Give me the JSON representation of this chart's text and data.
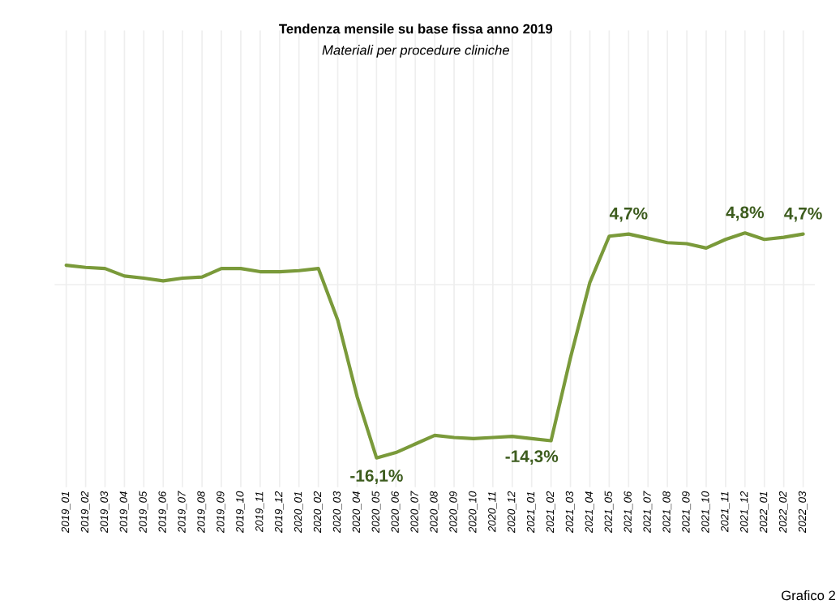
{
  "chart_data": {
    "type": "line",
    "title": "Tendenza mensile su base fissa anno 2019",
    "subtitle": "Materiali per procedure cliniche",
    "categories": [
      "2019_01",
      "2019_02",
      "2019_03",
      "2019_04",
      "2019_05",
      "2019_06",
      "2019_07",
      "2019_08",
      "2019_09",
      "2019_10",
      "2019_11",
      "2019_12",
      "2020_01",
      "2020_02",
      "2020_03",
      "2020_04",
      "2020_05",
      "2020_06",
      "2020_07",
      "2020_08",
      "2020_09",
      "2020_10",
      "2020_11",
      "2020_12",
      "2021_01",
      "2021_02",
      "2021_03",
      "2021_04",
      "2021_05",
      "2021_06",
      "2021_07",
      "2021_08",
      "2021_09",
      "2021_10",
      "2021_11",
      "2021_12",
      "2022_01",
      "2022_02",
      "2022_03"
    ],
    "series": [
      {
        "color": "#7a9a3a",
        "values": [
          1.8,
          1.6,
          1.5,
          0.8,
          0.6,
          0.35,
          0.6,
          0.7,
          1.5,
          1.5,
          1.2,
          1.2,
          1.3,
          1.5,
          -3.3,
          -10.4,
          -16.1,
          -15.6,
          -14.8,
          -14.0,
          -14.2,
          -14.3,
          -14.2,
          -14.1,
          -14.3,
          -14.5,
          -6.8,
          0.2,
          4.5,
          4.7,
          4.3,
          3.9,
          3.8,
          3.4,
          4.2,
          4.8,
          4.2,
          4.4,
          4.7
        ],
        "value_labels": [
          null,
          null,
          null,
          null,
          null,
          null,
          null,
          null,
          null,
          null,
          null,
          null,
          null,
          null,
          null,
          null,
          "-16,1%",
          null,
          null,
          null,
          null,
          null,
          null,
          null,
          "-14,3%",
          null,
          null,
          null,
          null,
          "4,7%",
          null,
          null,
          null,
          null,
          null,
          "4,8%",
          null,
          null,
          "4,7%"
        ]
      }
    ],
    "ref_lines": [
      {
        "axis": "y",
        "value": 0,
        "color": "#eeeeee"
      }
    ],
    "grid": "x",
    "tick_labels": "x",
    "marker": "none",
    "line_style": "solid",
    "annotations": [
      "Grafico 2"
    ]
  }
}
